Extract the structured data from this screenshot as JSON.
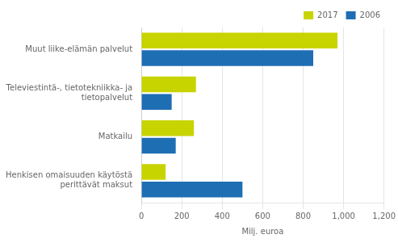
{
  "chart_data": {
    "type": "bar",
    "orientation": "horizontal",
    "categories": [
      "Muut liike-elämän palvelut",
      "Televiestintä-, tietotekniikka- ja\n    tietopalvelut",
      "Matkailu",
      "Henkisen omaisuuden käytöstä\n    perittävät maksut"
    ],
    "series": [
      {
        "name": "2017",
        "color": "#c8d400",
        "values": [
          970,
          270,
          260,
          120
        ]
      },
      {
        "name": "2006",
        "color": "#1e6eb4",
        "values": [
          850,
          150,
          170,
          500
        ]
      }
    ],
    "xlabel": "Milj. euroa",
    "xlim": [
      0,
      1200
    ],
    "xticks": [
      0,
      200,
      400,
      600,
      800,
      1000,
      1200
    ],
    "grid": true,
    "legend": "upper right"
  }
}
